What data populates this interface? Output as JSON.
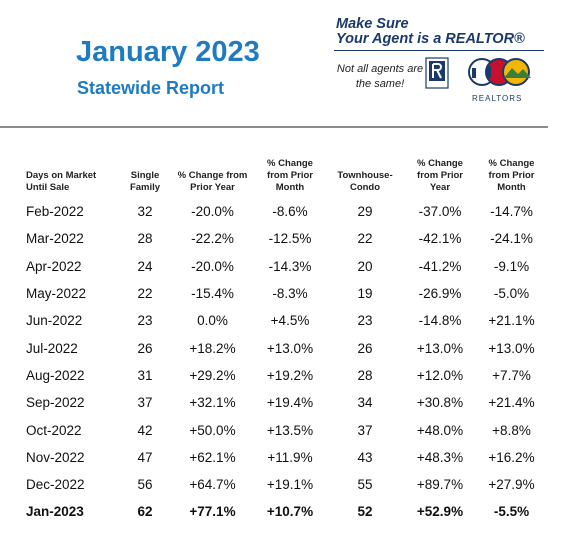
{
  "header": {
    "title": "January 2023",
    "subtitle": "Statewide Report",
    "promo_line1": "Make Sure",
    "promo_line2": "Your Agent is a REALTOR®",
    "tagline": "Not all agents are the same!",
    "logo_text": "REALTORS"
  },
  "table": {
    "columns": [
      "Days on Market Until Sale",
      "Single Family",
      "% Change from Prior Year",
      "% Change from Prior Month",
      "Townhouse-Condo",
      "% Change from Prior Year",
      "% Change from Prior Month"
    ],
    "rows": [
      [
        "Feb-2022",
        "32",
        "-20.0%",
        "-8.6%",
        "29",
        "-37.0%",
        "-14.7%"
      ],
      [
        "Mar-2022",
        "28",
        "-22.2%",
        "-12.5%",
        "22",
        "-42.1%",
        "-24.1%"
      ],
      [
        "Apr-2022",
        "24",
        "-20.0%",
        "-14.3%",
        "20",
        "-41.2%",
        "-9.1%"
      ],
      [
        "May-2022",
        "22",
        "-15.4%",
        "-8.3%",
        "19",
        "-26.9%",
        "-5.0%"
      ],
      [
        "Jun-2022",
        "23",
        "0.0%",
        "+4.5%",
        "23",
        "-14.8%",
        "+21.1%"
      ],
      [
        "Jul-2022",
        "26",
        "+18.2%",
        "+13.0%",
        "26",
        "+13.0%",
        "+13.0%"
      ],
      [
        "Aug-2022",
        "31",
        "+29.2%",
        "+19.2%",
        "28",
        "+12.0%",
        "+7.7%"
      ],
      [
        "Sep-2022",
        "37",
        "+32.1%",
        "+19.4%",
        "34",
        "+30.8%",
        "+21.4%"
      ],
      [
        "Oct-2022",
        "42",
        "+50.0%",
        "+13.5%",
        "37",
        "+48.0%",
        "+8.8%"
      ],
      [
        "Nov-2022",
        "47",
        "+62.1%",
        "+11.9%",
        "43",
        "+48.3%",
        "+16.2%"
      ],
      [
        "Dec-2022",
        "56",
        "+64.7%",
        "+19.1%",
        "55",
        "+89.7%",
        "+27.9%"
      ],
      [
        "Jan-2023",
        "62",
        "+77.1%",
        "+10.7%",
        "52",
        "+52.9%",
        "-5.5%"
      ]
    ]
  }
}
